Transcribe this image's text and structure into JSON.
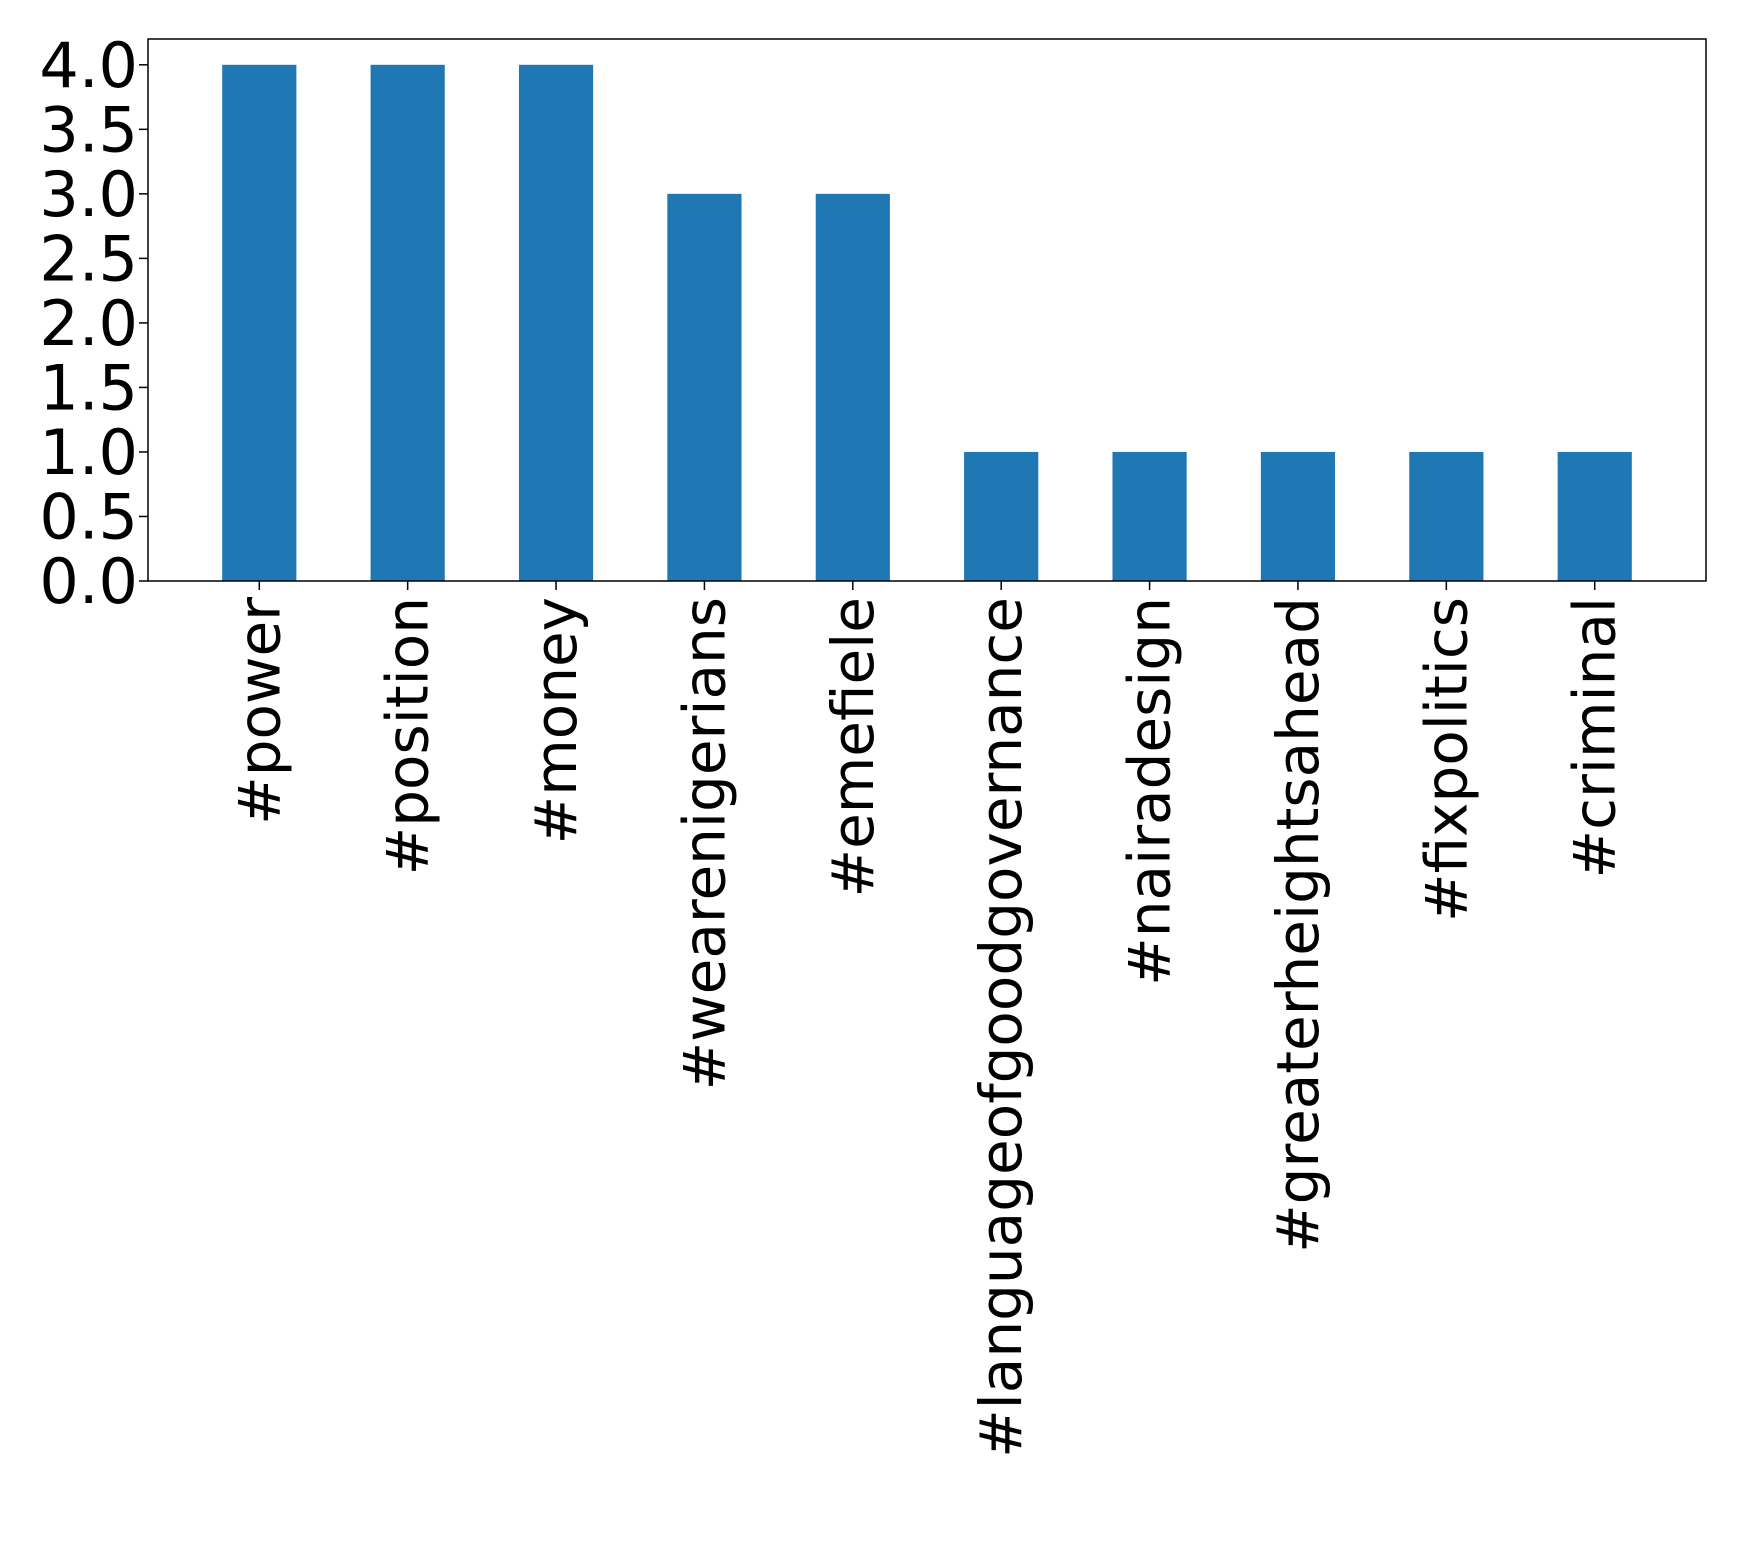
{
  "chart_data": {
    "type": "bar",
    "title": "",
    "xlabel": "",
    "ylabel": "",
    "categories": [
      "#power",
      "#position",
      "#money",
      "#wearenigerians",
      "#emefiele",
      "#languageofgoodgovernance",
      "#nairadesign",
      "#greaterheightsahead",
      "#fixpolitics",
      "#criminal"
    ],
    "values": [
      4,
      4,
      4,
      3,
      3,
      1,
      1,
      1,
      1,
      1
    ],
    "ylim": [
      0,
      4.2
    ],
    "yticks": [
      0.0,
      0.5,
      1.0,
      1.5,
      2.0,
      2.5,
      3.0,
      3.5,
      4.0
    ],
    "ytick_labels": [
      "0.0",
      "0.5",
      "1.0",
      "1.5",
      "2.0",
      "2.5",
      "3.0",
      "3.5",
      "4.0"
    ],
    "bar_color": "#1f77b4",
    "grid": false,
    "legend": "none"
  }
}
